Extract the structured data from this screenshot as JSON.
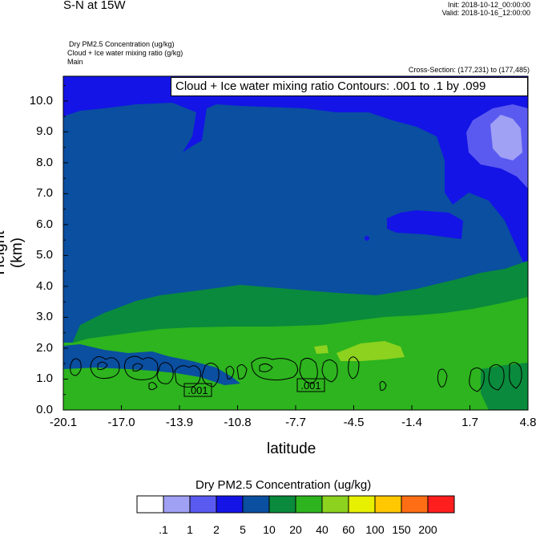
{
  "header": {
    "title": "S-N at 15W",
    "init": "Init: 2018-10-12_00:00:00",
    "valid": "Valid: 2018-10-16_12:00:00",
    "field1": "Dry PM2.5 Concentration   (ug/kg)",
    "field2": "Cloud + Ice water mixing ratio   (g/kg)",
    "field3": "Main",
    "cross_section": "Cross-Section: (177,231) to (177,485)"
  },
  "contour_label": "Cloud + Ice water mixing ratio Contours: .001 to .1 by .099",
  "colorbar": {
    "title": "Dry PM2.5 Concentration  (ug/kg)",
    "colors": [
      "#ffffff",
      "#a0a0f5",
      "#5a5af0",
      "#1414e6",
      "#0a4fa0",
      "#0a8a3c",
      "#2db41e",
      "#8cd21e",
      "#e6f000",
      "#ffc800",
      "#ff6e14",
      "#ff1e1e"
    ],
    "labels": [
      ".1",
      "1",
      "2",
      "5",
      "10",
      "20",
      "40",
      "60",
      "100",
      "150",
      "200"
    ]
  },
  "chart_data": {
    "type": "heatmap",
    "xlabel": "latitude",
    "ylabel": "Height (km)",
    "xlim": [
      -20.1,
      4.8
    ],
    "ylim": [
      0.0,
      10.8
    ],
    "x_ticks": [
      "-20.1",
      "-17.0",
      "-13.9",
      "-10.8",
      "-7.7",
      "-4.5",
      "-1.4",
      "1.7",
      "4.8"
    ],
    "y_ticks": [
      "0.0",
      "1.0",
      "2.0",
      "3.0",
      "4.0",
      "5.0",
      "6.0",
      "7.0",
      "8.0",
      "9.0",
      "10.0"
    ],
    "contour_labels": [
      {
        "text": ".001",
        "lat": -13.5,
        "height": 0.65
      },
      {
        "text": ".001",
        "lat": -7.2,
        "height": 0.78
      }
    ],
    "regions": [
      {
        "class": "10-20",
        "color": "#0a4fa0",
        "lat_range": [
          -20.1,
          4.8
        ],
        "height_range": [
          0.0,
          10.8
        ]
      },
      {
        "class": "5-10",
        "color": "#1414e6",
        "description": "upper-level band near 9-10.8 km, extending down to about 6.5 km near 1.7 to 4.8"
      },
      {
        "class": "2-5",
        "color": "#5a5af0",
        "description": "patch near 2 to 4.8 latitude, 8-9.5 km"
      },
      {
        "class": "1-2",
        "color": "#a0a0f5",
        "description": "small patch near 3 to 4.5 latitude, 8.3-9.2 km"
      },
      {
        "class": "20-40",
        "color": "#0a8a3c",
        "description": "layer near 1.2-4.3 km"
      },
      {
        "class": "40-60",
        "color": "#2db41e",
        "description": "boundary layer 0-2.5 km"
      },
      {
        "class": "60-100",
        "color": "#8cd21e",
        "description": "small patches near -6.5 to -1.7 latitude, 1.5-1.9 km"
      }
    ]
  }
}
